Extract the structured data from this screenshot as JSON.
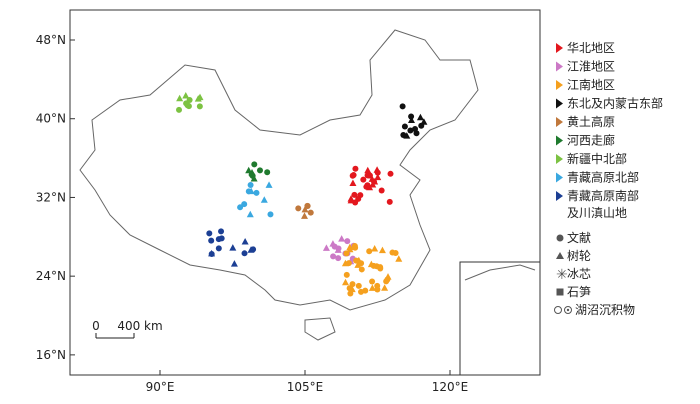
{
  "map": {
    "lat_ticks": [
      {
        "value": 48,
        "label": "48°N"
      },
      {
        "value": 40,
        "label": "40°N"
      },
      {
        "value": 32,
        "label": "32°N"
      },
      {
        "value": 24,
        "label": "24°N"
      },
      {
        "value": 16,
        "label": "16°N"
      }
    ],
    "lon_ticks": [
      {
        "value": 90,
        "label": "90°E"
      },
      {
        "value": 105,
        "label": "105°E"
      },
      {
        "value": 120,
        "label": "120°E"
      }
    ],
    "regions": [
      {
        "name": "华北地区",
        "color": "#e3171e"
      },
      {
        "name": "江淮地区",
        "color": "#cc79c6"
      },
      {
        "name": "江南地区",
        "color": "#f5a01e"
      },
      {
        "name": "东北及内蒙古东部",
        "color": "#111111"
      },
      {
        "name": "黄土高原",
        "color": "#c0783c"
      },
      {
        "name": "河西走廊",
        "color": "#1f7a2e"
      },
      {
        "name": "新疆中北部",
        "color": "#7cc242"
      },
      {
        "name": "青藏高原北部",
        "color": "#3aa8e0"
      },
      {
        "name": [
          "青藏高原南部",
          "及川滇山地"
        ],
        "color": "#1c3f94"
      }
    ],
    "proxies": [
      "文献",
      "树轮",
      "冰芯",
      "石笋",
      "湖沼沉积物"
    ],
    "scale_bar": {
      "zero": "0",
      "length": "400 km"
    }
  }
}
